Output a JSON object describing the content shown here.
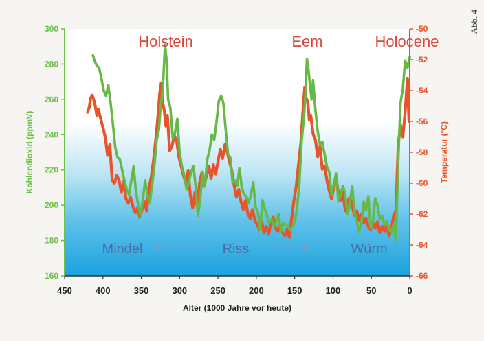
{
  "figure_label": "Abb. 4",
  "chart_data": {
    "type": "line",
    "xlabel": "Alter (1000 Jahre vor heute)",
    "ylabel_left": "Kohlendioxid (ppmV)",
    "ylabel_right": "Temperatur (°C)",
    "x_range": [
      450,
      0
    ],
    "y_left_range": [
      160,
      300
    ],
    "y_right_range": [
      -66,
      -50
    ],
    "x_ticks": [
      450,
      400,
      350,
      300,
      250,
      200,
      150,
      100,
      50,
      0
    ],
    "y_left_ticks": [
      160,
      180,
      200,
      220,
      240,
      260,
      280,
      300
    ],
    "y_right_ticks": [
      -66,
      -64,
      -62,
      -60,
      -58,
      -56,
      -54,
      -52,
      -50
    ],
    "interglacial_labels": [
      "Holstein",
      "Eem",
      "Holocene"
    ],
    "glacial_labels": [
      "Mindel",
      "Riss",
      "Würm"
    ],
    "colors": {
      "co2": "#66b847",
      "temperature": "#e8542a",
      "left_axis": "#6cc04a",
      "right_axis": "#e8542a",
      "interglacial_text": "#d9463a",
      "glacial_text": "#4b6aa8",
      "background_top": "#ffffff",
      "background_bottom": "#1aa3de"
    },
    "series": [
      {
        "name": "Kohlendioxid",
        "axis": "left",
        "x": [
          413,
          411,
          408,
          405,
          402,
          399,
          396,
          393,
          390,
          387,
          384,
          381,
          378,
          375,
          372,
          369,
          366,
          363,
          360,
          357,
          354,
          351,
          348,
          345,
          342,
          339,
          336,
          333,
          330,
          327,
          325,
          323,
          321,
          319,
          317,
          315,
          312,
          309,
          306,
          303,
          300,
          297,
          294,
          291,
          288,
          285,
          282,
          279,
          276,
          273,
          270,
          267,
          264,
          261,
          258,
          255,
          252,
          249,
          246,
          243,
          240,
          237,
          234,
          231,
          228,
          225,
          222,
          219,
          216,
          213,
          210,
          207,
          204,
          201,
          198,
          195,
          192,
          189,
          186,
          183,
          180,
          177,
          174,
          171,
          168,
          165,
          162,
          159,
          156,
          153,
          150,
          147,
          144,
          141,
          138,
          136,
          134,
          132,
          130,
          128,
          126,
          123,
          120,
          117,
          114,
          111,
          108,
          105,
          102,
          99,
          96,
          93,
          90,
          87,
          84,
          81,
          78,
          75,
          72,
          69,
          66,
          63,
          60,
          57,
          54,
          51,
          48,
          45,
          42,
          39,
          36,
          33,
          30,
          27,
          24,
          21,
          18,
          15,
          12,
          9,
          6,
          3,
          0
        ],
        "values": [
          285,
          282,
          279,
          278,
          272,
          265,
          262,
          268,
          258,
          246,
          233,
          227,
          226,
          220,
          214,
          209,
          206,
          214,
          222,
          208,
          200,
          194,
          203,
          214,
          206,
          201,
          211,
          222,
          237,
          243,
          255,
          262,
          274,
          291,
          282,
          260,
          255,
          238,
          241,
          249,
          230,
          222,
          217,
          209,
          213,
          219,
          222,
          210,
          194,
          205,
          219,
          211,
          226,
          231,
          240,
          237,
          247,
          259,
          262,
          258,
          243,
          229,
          227,
          213,
          214,
          211,
          221,
          210,
          206,
          205,
          201,
          206,
          213,
          199,
          196,
          186,
          203,
          198,
          194,
          190,
          192,
          188,
          191,
          195,
          185,
          190,
          189,
          188,
          186,
          188,
          190,
          198,
          212,
          236,
          250,
          262,
          283,
          277,
          268,
          260,
          271,
          254,
          242,
          234,
          236,
          229,
          222,
          219,
          206,
          212,
          218,
          202,
          206,
          211,
          206,
          195,
          201,
          211,
          196,
          191,
          185,
          190,
          202,
          197,
          205,
          187,
          191,
          204,
          200,
          192,
          194,
          189,
          191,
          186,
          185,
          189,
          180,
          225,
          258,
          266,
          282,
          278,
          284
        ]
      },
      {
        "name": "Temperatur",
        "axis": "right",
        "x": [
          420,
          418,
          416,
          414,
          412,
          410,
          408,
          406,
          403,
          400,
          397,
          394,
          391,
          388,
          385,
          382,
          379,
          376,
          373,
          370,
          367,
          364,
          361,
          358,
          355,
          352,
          349,
          346,
          343,
          340,
          337,
          334,
          331,
          328,
          326,
          324,
          322,
          320,
          318,
          316,
          313,
          310,
          307,
          304,
          301,
          298,
          295,
          292,
          289,
          286,
          283,
          280,
          277,
          274,
          271,
          268,
          265,
          262,
          259,
          256,
          253,
          250,
          247,
          244,
          241,
          238,
          235,
          232,
          229,
          226,
          223,
          220,
          217,
          214,
          211,
          208,
          205,
          202,
          199,
          196,
          193,
          190,
          187,
          184,
          181,
          178,
          175,
          172,
          169,
          166,
          163,
          160,
          157,
          154,
          151,
          148,
          145,
          142,
          139,
          137,
          135,
          133,
          131,
          129,
          126,
          123,
          120,
          117,
          114,
          111,
          108,
          105,
          102,
          99,
          96,
          93,
          90,
          87,
          84,
          81,
          78,
          75,
          72,
          69,
          66,
          63,
          60,
          57,
          54,
          51,
          48,
          45,
          42,
          39,
          36,
          33,
          30,
          27,
          24,
          21,
          18,
          15,
          12,
          9,
          6,
          3,
          1
        ],
        "values": [
          -55.4,
          -55.1,
          -54.5,
          -54.3,
          -54.6,
          -55.0,
          -55.6,
          -55.2,
          -55.8,
          -56.4,
          -57.0,
          -58.2,
          -57.5,
          -59.8,
          -60.0,
          -59.5,
          -59.8,
          -60.6,
          -59.9,
          -61.0,
          -61.3,
          -60.9,
          -61.5,
          -61.9,
          -61.6,
          -62.2,
          -61.7,
          -61.2,
          -61.8,
          -60.3,
          -59.6,
          -58.5,
          -57.1,
          -55.5,
          -54.2,
          -53.5,
          -54.8,
          -55.3,
          -56.3,
          -55.6,
          -57.9,
          -57.6,
          -56.9,
          -57.2,
          -58.3,
          -58.9,
          -59.5,
          -60.0,
          -59.2,
          -60.8,
          -61.6,
          -60.6,
          -61.5,
          -60.0,
          -59.3,
          -60.2,
          -59.5,
          -58.9,
          -59.7,
          -58.8,
          -59.4,
          -58.6,
          -57.8,
          -58.4,
          -57.5,
          -58.0,
          -58.6,
          -59.2,
          -60.1,
          -60.9,
          -60.4,
          -61.2,
          -61.7,
          -61.1,
          -62.0,
          -62.3,
          -61.7,
          -62.4,
          -62.7,
          -63.0,
          -62.5,
          -63.2,
          -62.8,
          -63.3,
          -62.6,
          -62.2,
          -62.9,
          -63.1,
          -62.7,
          -63.2,
          -63.4,
          -63.0,
          -63.5,
          -62.3,
          -61.1,
          -60.2,
          -58.8,
          -57.4,
          -55.2,
          -53.8,
          -54.5,
          -54.7,
          -55.9,
          -55.6,
          -56.8,
          -57.2,
          -58.3,
          -57.6,
          -59.1,
          -58.9,
          -59.8,
          -60.5,
          -61.0,
          -60.3,
          -59.6,
          -60.7,
          -61.1,
          -60.6,
          -61.8,
          -61.2,
          -60.9,
          -61.5,
          -62.1,
          -61.8,
          -62.4,
          -62.0,
          -62.6,
          -62.3,
          -62.8,
          -63.0,
          -62.6,
          -62.9,
          -62.5,
          -63.2,
          -62.8,
          -63.1,
          -62.7,
          -63.4,
          -63.0,
          -62.1,
          -61.8,
          -57.5,
          -56.2,
          -57.0,
          -55.4,
          -53.2,
          -56.0
        ]
      }
    ],
    "legend": "none",
    "grid": false
  }
}
